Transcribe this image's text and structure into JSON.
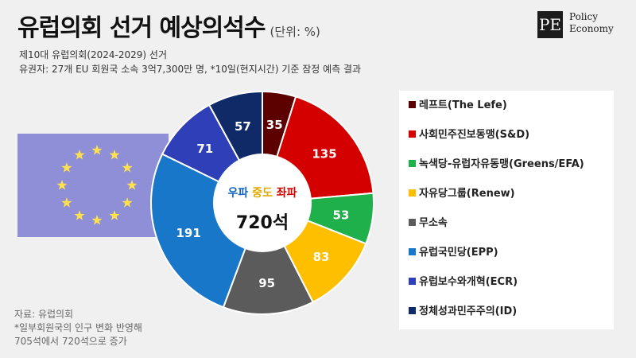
{
  "header": {
    "title": "유럽의회 선거 예상의석수",
    "unit": "(단위: %)",
    "subtitle1": "제10대 유럽의회(2024-2029) 선거",
    "subtitle2": "유권자: 27개 EU 회원국 소속 3억7,300만 명, *10일(현지시간) 기준 잠정 예측 결과"
  },
  "logo": {
    "mark": "PE",
    "line1": "Policy",
    "line2": "Economy"
  },
  "center": {
    "word1": "우파",
    "word2": "중도",
    "word3": "좌파",
    "total": "720석"
  },
  "chart_data": {
    "type": "pie",
    "series": [
      {
        "name": "레프트(The Lefe)",
        "value": 35,
        "color": "#5c0000"
      },
      {
        "name": "사회민주진보동맹(S&D)",
        "value": 135,
        "color": "#d40000"
      },
      {
        "name": "녹색당-유럽자유동맹(Greens/EFA)",
        "value": 53,
        "color": "#1fb04c"
      },
      {
        "name": "자유당그룹(Renew)",
        "value": 83,
        "color": "#fdbf00"
      },
      {
        "name": "무소속",
        "value": 95,
        "color": "#5b5b5b"
      },
      {
        "name": "유럽국민당(EPP)",
        "value": 191,
        "color": "#1877c8"
      },
      {
        "name": "유럽보수와개혁(ECR)",
        "value": 71,
        "color": "#2e3fb8"
      },
      {
        "name": "정체성과민주주의(ID)",
        "value": 57,
        "color": "#0f2a66"
      }
    ],
    "total": 720
  },
  "colors": {
    "right": "#1565c0",
    "center": "#e0a800",
    "left": "#d40000",
    "flag_star": "#ffe14d"
  },
  "footnote": {
    "source": "자료: 유럽의회",
    "note1": "*일부회원국의 인구 변화 반영해",
    "note2": "705석에서 720석으로 증가"
  }
}
